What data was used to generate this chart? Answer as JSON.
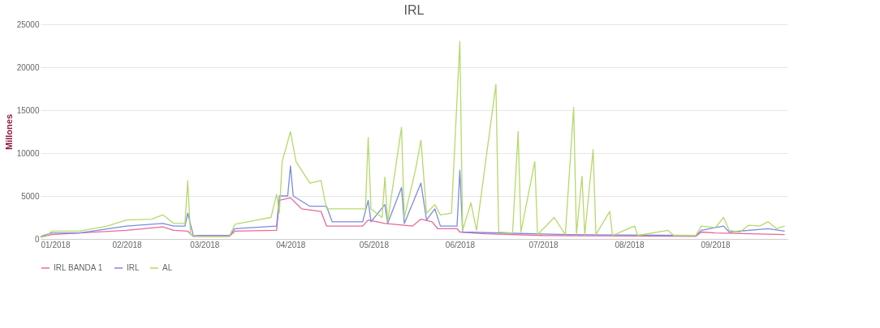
{
  "chart_data": {
    "type": "line",
    "title": "IRL",
    "ylabel": "Millones",
    "xlim": [
      "2018-01-01",
      "2018-09-27"
    ],
    "xticks": [
      {
        "value": "2018-01-01",
        "label": "01/2018"
      },
      {
        "value": "2018-02-01",
        "label": "02/2018"
      },
      {
        "value": "2018-03-01",
        "label": "03/2018"
      },
      {
        "value": "2018-04-01",
        "label": "04/2018"
      },
      {
        "value": "2018-05-01",
        "label": "05/2018"
      },
      {
        "value": "2018-06-01",
        "label": "06/2018"
      },
      {
        "value": "2018-07-01",
        "label": "07/2018"
      },
      {
        "value": "2018-08-01",
        "label": "08/2018"
      },
      {
        "value": "2018-09-01",
        "label": "09/2018"
      }
    ],
    "ylim": [
      0,
      25000
    ],
    "yticks": [
      0,
      5000,
      10000,
      15000,
      20000,
      25000
    ],
    "grid": "y",
    "legend": "bottom",
    "marker": "none",
    "line_style": "solid",
    "series": [
      {
        "name": "IRL BANDA 1",
        "color": "#e8689a",
        "x": [
          "2018-01-01",
          "2018-01-05",
          "2018-02-01",
          "2018-02-14",
          "2018-02-18",
          "2018-02-23",
          "2018-02-25",
          "2018-03-10",
          "2018-03-12",
          "2018-03-27",
          "2018-03-28",
          "2018-04-01",
          "2018-04-05",
          "2018-04-12",
          "2018-04-14",
          "2018-04-27",
          "2018-04-29",
          "2018-05-05",
          "2018-05-15",
          "2018-05-18",
          "2018-05-22",
          "2018-05-24",
          "2018-05-31",
          "2018-06-01",
          "2018-06-10",
          "2018-07-01",
          "2018-08-25",
          "2018-08-27",
          "2018-09-01",
          "2018-09-26"
        ],
        "values": [
          200,
          500,
          1000,
          1400,
          1000,
          900,
          300,
          300,
          900,
          1000,
          4500,
          4800,
          3500,
          3200,
          1500,
          1500,
          2200,
          1800,
          1500,
          2300,
          2000,
          1200,
          1200,
          800,
          600,
          400,
          300,
          800,
          700,
          500
        ]
      },
      {
        "name": "IRL",
        "color": "#7b8be0",
        "x": [
          "2018-01-01",
          "2018-01-05",
          "2018-01-15",
          "2018-02-01",
          "2018-02-14",
          "2018-02-18",
          "2018-02-22",
          "2018-02-23",
          "2018-02-25",
          "2018-03-10",
          "2018-03-12",
          "2018-03-27",
          "2018-03-28",
          "2018-03-31",
          "2018-04-01",
          "2018-04-02",
          "2018-04-08",
          "2018-04-14",
          "2018-04-16",
          "2018-04-27",
          "2018-04-29",
          "2018-04-30",
          "2018-05-05",
          "2018-05-06",
          "2018-05-11",
          "2018-05-12",
          "2018-05-18",
          "2018-05-20",
          "2018-05-23",
          "2018-05-25",
          "2018-05-31",
          "2018-06-01",
          "2018-06-02",
          "2018-07-10",
          "2018-08-25",
          "2018-08-27",
          "2018-09-04",
          "2018-09-06",
          "2018-09-20",
          "2018-09-26"
        ],
        "values": [
          300,
          700,
          700,
          1500,
          1800,
          1500,
          1500,
          3000,
          400,
          400,
          1200,
          1500,
          5000,
          5000,
          8500,
          5000,
          3800,
          3800,
          2000,
          2000,
          4500,
          2000,
          4000,
          1800,
          6000,
          1800,
          6500,
          2200,
          3500,
          1500,
          1500,
          8000,
          800,
          500,
          400,
          1000,
          1500,
          800,
          1200,
          900
        ]
      },
      {
        "name": "AL",
        "color": "#b5d96b",
        "x": [
          "2018-01-01",
          "2018-01-03",
          "2018-01-05",
          "2018-01-15",
          "2018-01-25",
          "2018-02-01",
          "2018-02-10",
          "2018-02-14",
          "2018-02-18",
          "2018-02-22",
          "2018-02-23",
          "2018-02-24",
          "2018-02-27",
          "2018-03-10",
          "2018-03-12",
          "2018-03-20",
          "2018-03-25",
          "2018-03-27",
          "2018-03-28",
          "2018-03-29",
          "2018-04-01",
          "2018-04-03",
          "2018-04-08",
          "2018-04-12",
          "2018-04-14",
          "2018-04-28",
          "2018-04-29",
          "2018-04-30",
          "2018-05-04",
          "2018-05-05",
          "2018-05-06",
          "2018-05-11",
          "2018-05-12",
          "2018-05-16",
          "2018-05-18",
          "2018-05-20",
          "2018-05-23",
          "2018-05-25",
          "2018-05-29",
          "2018-06-01",
          "2018-06-02",
          "2018-06-05",
          "2018-06-07",
          "2018-06-14",
          "2018-06-15",
          "2018-06-20",
          "2018-06-22",
          "2018-06-23",
          "2018-06-28",
          "2018-06-29",
          "2018-07-05",
          "2018-07-09",
          "2018-07-12",
          "2018-07-13",
          "2018-07-15",
          "2018-07-16",
          "2018-07-19",
          "2018-07-20",
          "2018-07-25",
          "2018-07-26",
          "2018-08-03",
          "2018-08-04",
          "2018-08-15",
          "2018-08-17",
          "2018-08-25",
          "2018-08-27",
          "2018-09-01",
          "2018-09-04",
          "2018-09-06",
          "2018-09-10",
          "2018-09-13",
          "2018-09-17",
          "2018-09-20",
          "2018-09-23",
          "2018-09-26"
        ],
        "values": [
          300,
          300,
          900,
          900,
          1500,
          2200,
          2300,
          2800,
          1800,
          1800,
          6800,
          500,
          300,
          300,
          1700,
          2200,
          2500,
          5200,
          3000,
          9000,
          12500,
          9000,
          6500,
          6800,
          3500,
          3500,
          11800,
          3500,
          2500,
          7200,
          2000,
          13000,
          2500,
          8000,
          11500,
          3000,
          4000,
          2800,
          3000,
          23000,
          1000,
          4200,
          1000,
          18000,
          800,
          700,
          12500,
          800,
          9000,
          500,
          2500,
          500,
          15300,
          500,
          7300,
          500,
          10400,
          500,
          3200,
          400,
          1500,
          400,
          1000,
          400,
          400,
          1500,
          1300,
          2500,
          1000,
          800,
          1600,
          1500,
          2000,
          1200,
          1500
        ]
      }
    ]
  }
}
